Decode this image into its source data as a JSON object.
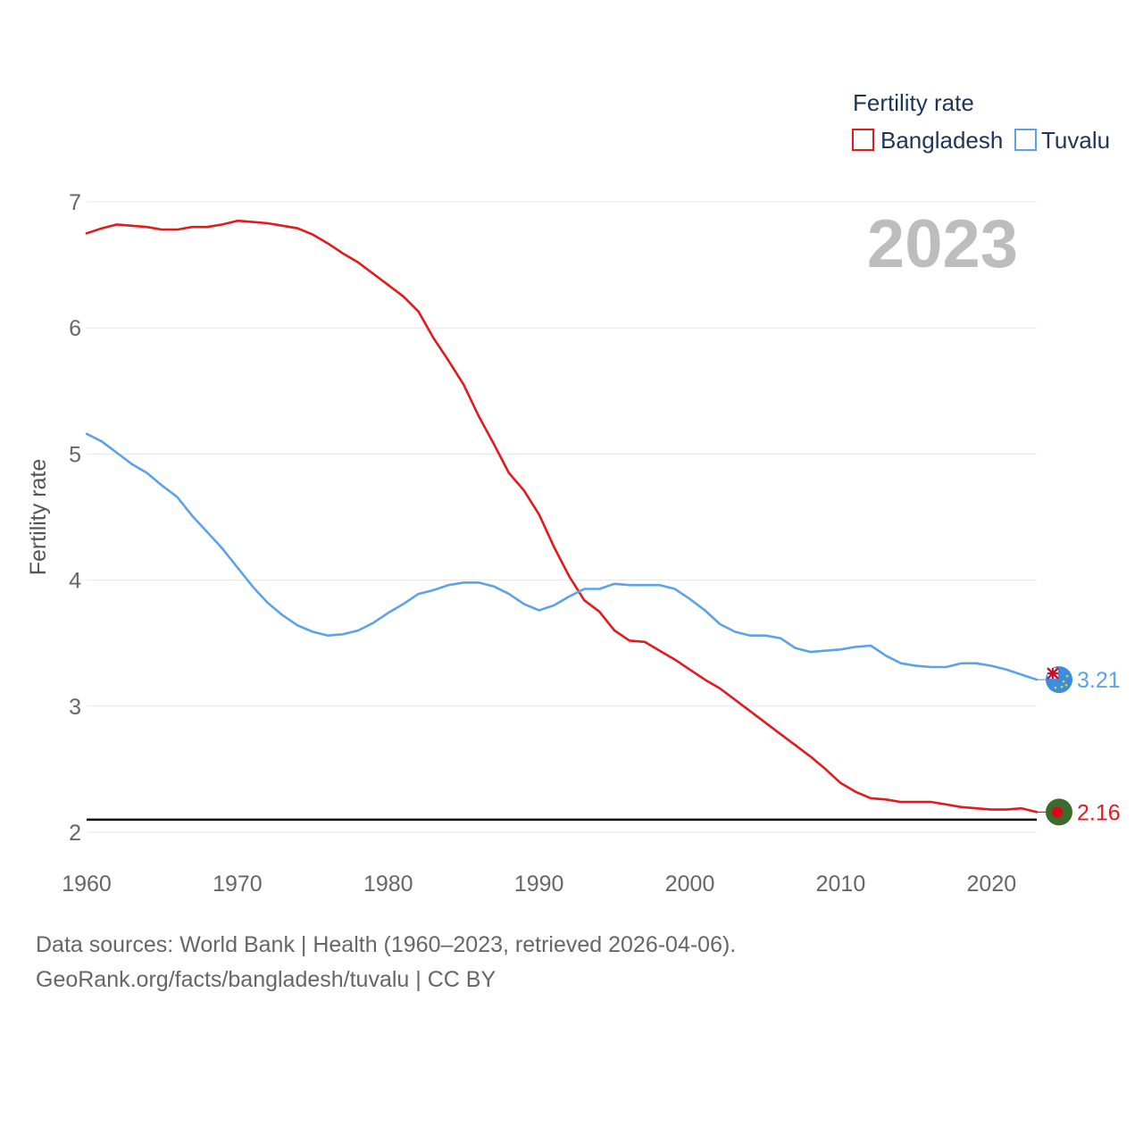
{
  "chart_data": {
    "type": "line",
    "ylabel": "Fertility rate",
    "xlabel": "",
    "xlim": [
      1960,
      2023
    ],
    "ylim": [
      2,
      7
    ],
    "x_ticks": [
      1960,
      1970,
      1980,
      1990,
      2000,
      2010,
      2020
    ],
    "y_ticks": [
      2,
      3,
      4,
      5,
      6,
      7
    ],
    "year_label": "2023",
    "legend_title": "Fertility rate",
    "reference_line": 2.1,
    "x": [
      1960,
      1961,
      1962,
      1963,
      1964,
      1965,
      1966,
      1967,
      1968,
      1969,
      1970,
      1971,
      1972,
      1973,
      1974,
      1975,
      1976,
      1977,
      1978,
      1979,
      1980,
      1981,
      1982,
      1983,
      1984,
      1985,
      1986,
      1987,
      1988,
      1989,
      1990,
      1991,
      1992,
      1993,
      1994,
      1995,
      1996,
      1997,
      1998,
      1999,
      2000,
      2001,
      2002,
      2003,
      2004,
      2005,
      2006,
      2007,
      2008,
      2009,
      2010,
      2011,
      2012,
      2013,
      2014,
      2015,
      2016,
      2017,
      2018,
      2019,
      2020,
      2021,
      2022,
      2023
    ],
    "series": [
      {
        "name": "Bangladesh",
        "color": "#e31a1c",
        "end_label": "2.16",
        "values": [
          6.75,
          6.79,
          6.82,
          6.81,
          6.8,
          6.78,
          6.78,
          6.8,
          6.8,
          6.82,
          6.85,
          6.84,
          6.83,
          6.81,
          6.79,
          6.74,
          6.67,
          6.59,
          6.52,
          6.43,
          6.34,
          6.25,
          6.13,
          5.92,
          5.74,
          5.55,
          5.3,
          5.08,
          4.85,
          4.71,
          4.52,
          4.26,
          4.03,
          3.84,
          3.75,
          3.6,
          3.52,
          3.51,
          3.44,
          3.37,
          3.29,
          3.21,
          3.14,
          3.05,
          2.96,
          2.87,
          2.78,
          2.69,
          2.6,
          2.5,
          2.39,
          2.32,
          2.27,
          2.26,
          2.24,
          2.24,
          2.24,
          2.22,
          2.2,
          2.19,
          2.18,
          2.18,
          2.19,
          2.16
        ]
      },
      {
        "name": "Tuvalu",
        "color": "#5ba3e6",
        "end_label": "3.21",
        "values": [
          5.16,
          5.1,
          5.01,
          4.92,
          4.85,
          4.75,
          4.66,
          4.51,
          4.38,
          4.25,
          4.1,
          3.95,
          3.82,
          3.72,
          3.64,
          3.59,
          3.56,
          3.57,
          3.6,
          3.66,
          3.74,
          3.81,
          3.89,
          3.92,
          3.96,
          3.98,
          3.98,
          3.95,
          3.89,
          3.81,
          3.76,
          3.8,
          3.87,
          3.93,
          3.93,
          3.97,
          3.96,
          3.96,
          3.96,
          3.93,
          3.85,
          3.76,
          3.65,
          3.59,
          3.56,
          3.56,
          3.54,
          3.46,
          3.43,
          3.44,
          3.45,
          3.47,
          3.48,
          3.4,
          3.34,
          3.32,
          3.31,
          3.31,
          3.34,
          3.34,
          3.32,
          3.29,
          3.25,
          3.21
        ]
      }
    ]
  },
  "footer": {
    "sources": "Data sources: World Bank | Health (1960–2023, retrieved 2026-04-06).",
    "link": "GeoRank.org/facts/bangladesh/tuvalu | CC BY"
  }
}
